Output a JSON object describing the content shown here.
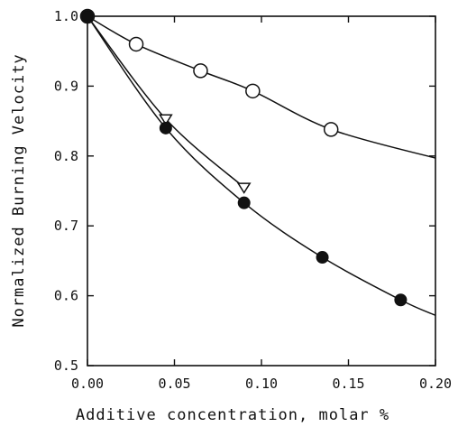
{
  "chart_data": {
    "type": "line",
    "xlabel": "Additive concentration, molar %",
    "ylabel": "Normalized Burning Velocity",
    "xlim": [
      0.0,
      0.2
    ],
    "ylim": [
      0.5,
      1.0
    ],
    "xticks": [
      "0.00",
      "0.05",
      "0.10",
      "0.15",
      "0.20"
    ],
    "yticks": [
      "0.5",
      "0.6",
      "0.7",
      "0.8",
      "0.9",
      "1.0"
    ],
    "grid": false,
    "series": [
      {
        "marker": "open-circle",
        "points": [
          [
            0.0,
            1.0
          ],
          [
            0.028,
            0.96
          ],
          [
            0.065,
            0.922
          ],
          [
            0.095,
            0.893
          ],
          [
            0.14,
            0.838
          ]
        ],
        "curve": [
          [
            0.0,
            1.0
          ],
          [
            0.028,
            0.96
          ],
          [
            0.065,
            0.922
          ],
          [
            0.095,
            0.893
          ],
          [
            0.14,
            0.838
          ],
          [
            0.2,
            0.797
          ]
        ]
      },
      {
        "marker": "open-triangle-down",
        "points": [
          [
            0.045,
            0.853
          ],
          [
            0.09,
            0.755
          ]
        ],
        "curve": [
          [
            0.0,
            1.0
          ],
          [
            0.045,
            0.853
          ],
          [
            0.09,
            0.755
          ]
        ]
      },
      {
        "marker": "filled-circle",
        "points": [
          [
            0.0,
            1.0
          ],
          [
            0.045,
            0.84
          ],
          [
            0.09,
            0.733
          ],
          [
            0.135,
            0.655
          ],
          [
            0.18,
            0.594
          ]
        ],
        "curve": [
          [
            0.0,
            1.0
          ],
          [
            0.045,
            0.84
          ],
          [
            0.09,
            0.733
          ],
          [
            0.135,
            0.655
          ],
          [
            0.18,
            0.594
          ],
          [
            0.2,
            0.572
          ]
        ]
      }
    ]
  }
}
